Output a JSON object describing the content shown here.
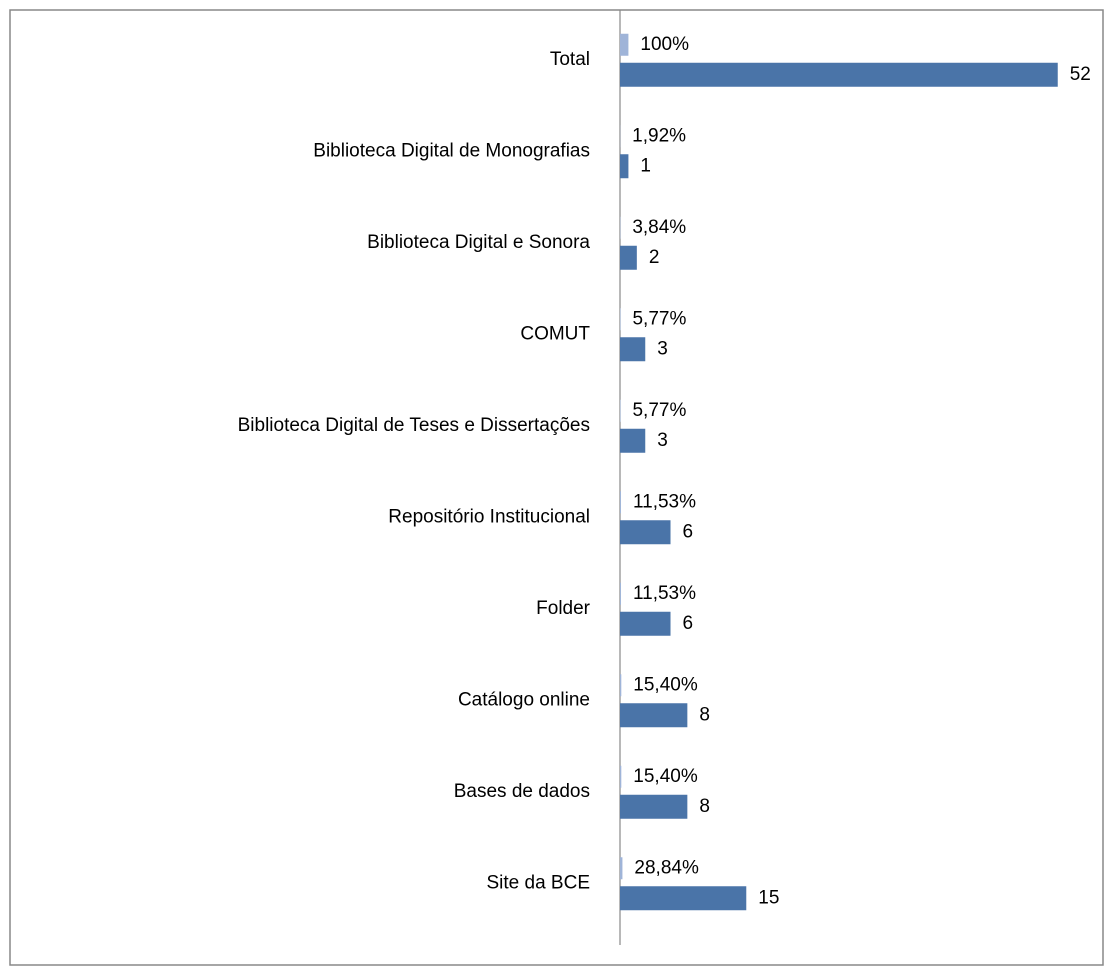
{
  "chart_data": {
    "type": "bar",
    "orientation": "horizontal",
    "categories": [
      "Total",
      "Biblioteca Digital de Monografias",
      "Biblioteca Digital e Sonora",
      "COMUT",
      "Biblioteca Digital de Teses e Dissertações",
      "Repositório Institucional",
      "Folder",
      "Catálogo online",
      "Bases de dados",
      "Site da BCE"
    ],
    "series": [
      {
        "color": "#9fb4d8",
        "axis": "x2",
        "values": [
          100,
          1.92,
          3.84,
          5.77,
          5.77,
          11.53,
          11.53,
          15.4,
          15.4,
          28.84
        ],
        "value_labels": [
          "100%",
          "1,92%",
          "3,84%",
          "5,77%",
          "5,77%",
          "11,53%",
          "11,53%",
          "15,40%",
          "15,40%",
          "28,84%"
        ]
      },
      {
        "color": "#4a74a8",
        "values": [
          52,
          1,
          2,
          3,
          3,
          6,
          6,
          8,
          8,
          15
        ]
      }
    ],
    "xlim": [
      0,
      55
    ],
    "x2lim": [
      0,
      5500
    ]
  }
}
